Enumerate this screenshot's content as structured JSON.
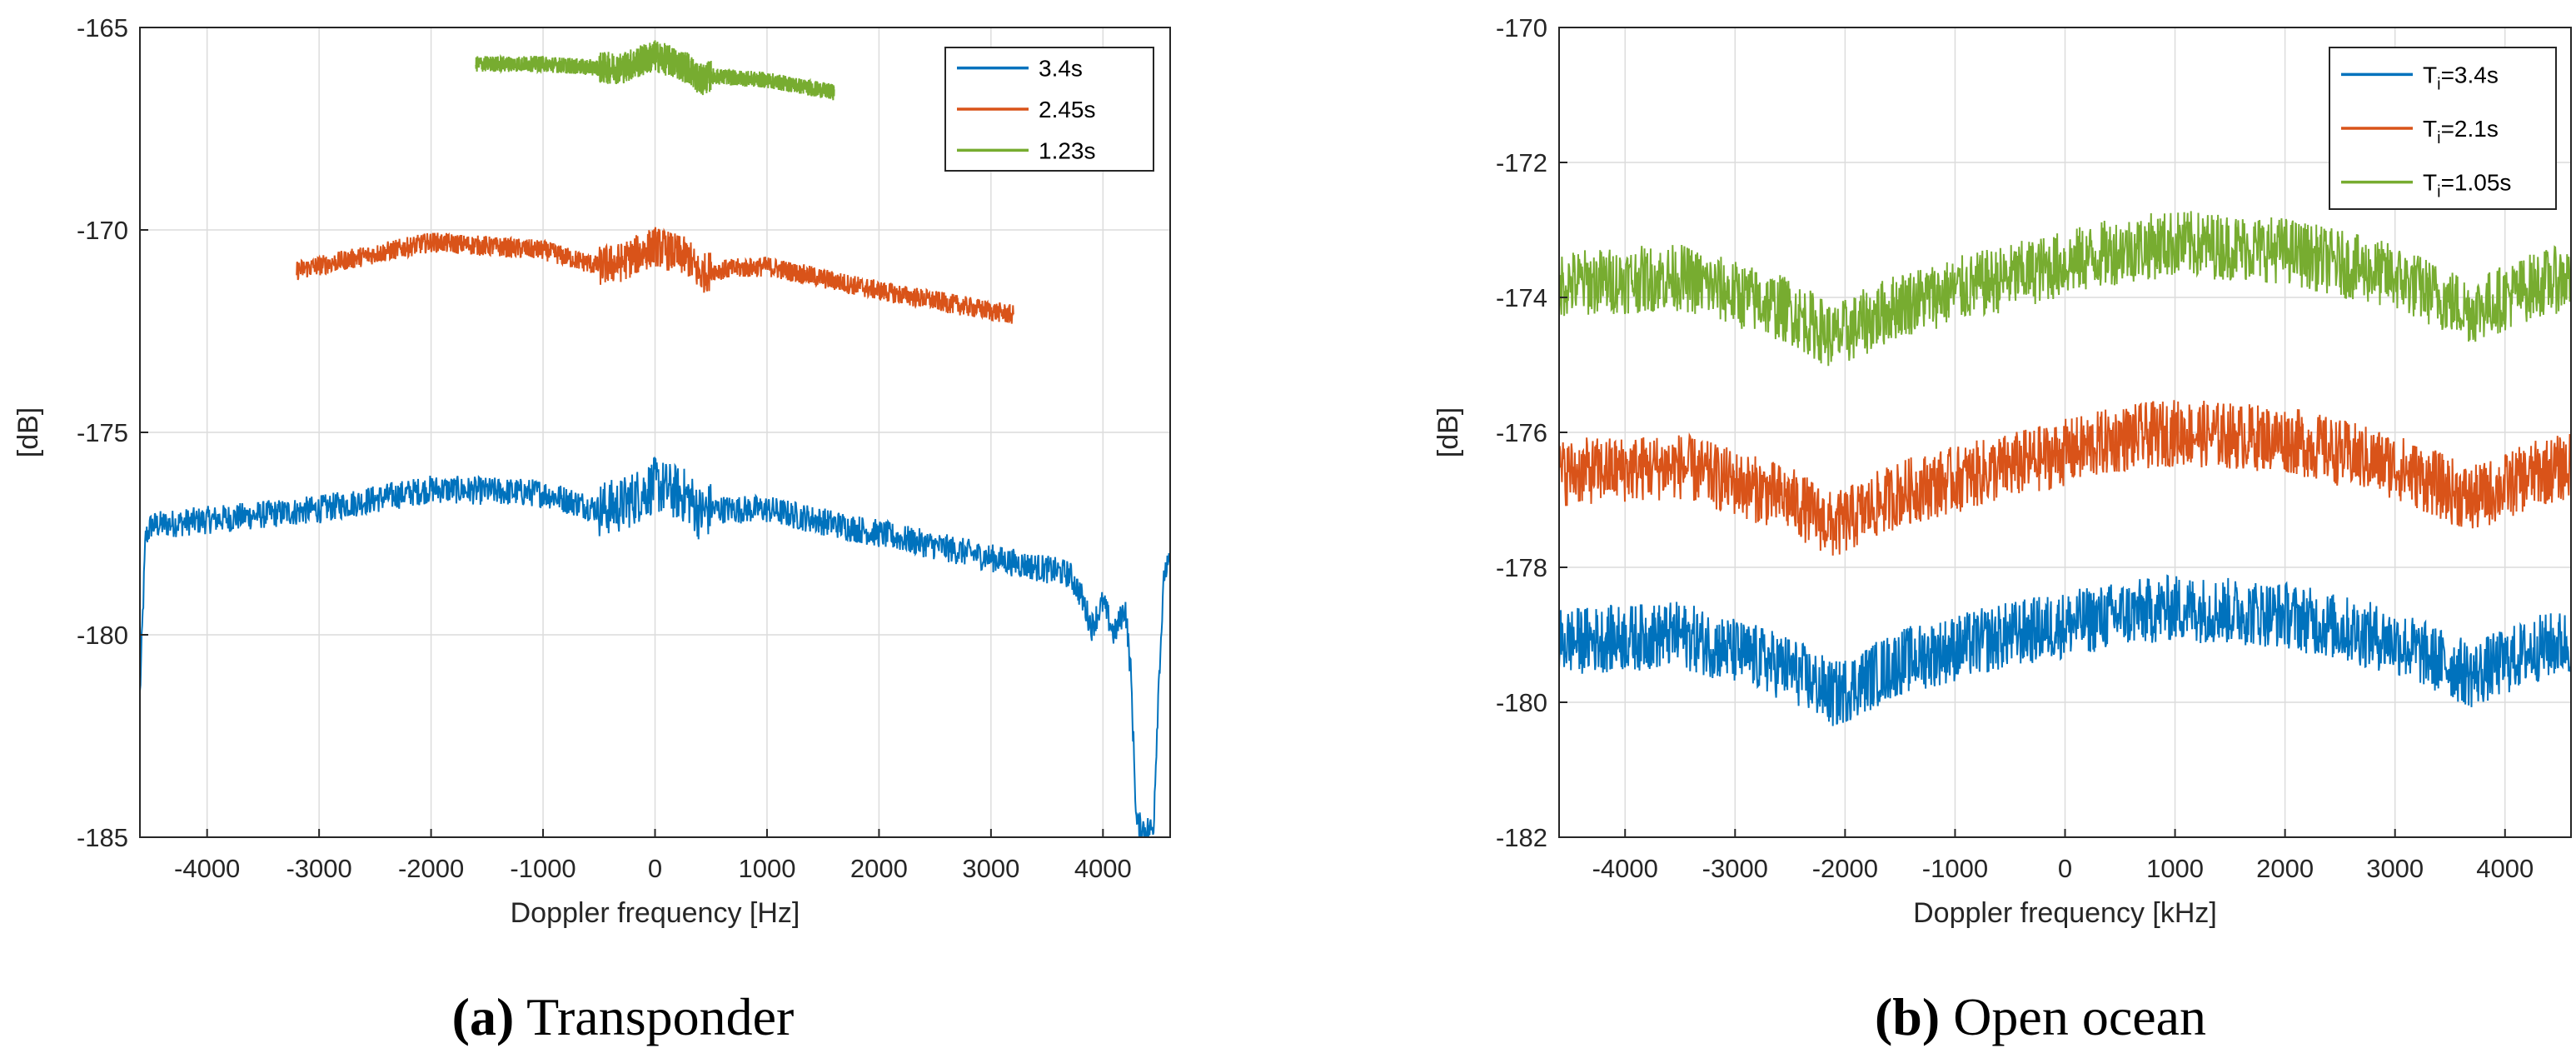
{
  "chart_data": [
    {
      "type": "line",
      "panel": "a",
      "caption_letter": "(a)",
      "caption_text": " Transponder",
      "xlabel": "Doppler frequency [Hz]",
      "ylabel": "[dB]",
      "xlim": [
        -4600,
        4600
      ],
      "ylim": [
        -185,
        -165
      ],
      "xticks": [
        -4000,
        -3000,
        -2000,
        -1000,
        0,
        1000,
        2000,
        3000,
        4000
      ],
      "yticks": [
        -185,
        -180,
        -175,
        -170,
        -165
      ],
      "grid": true,
      "legend_position": "top-right",
      "series": [
        {
          "name": "3.4s",
          "color": "#0072BD",
          "noise": 0.35,
          "x": [
            -4600,
            -4550,
            -4500,
            -3000,
            -2000,
            -1000,
            -500,
            -300,
            0,
            300,
            400,
            500,
            1000,
            2000,
            3000,
            3700,
            3800,
            3900,
            4000,
            4100,
            4200,
            4250,
            4300,
            4400,
            4450,
            4500,
            4550,
            4600
          ],
          "y": [
            -181.5,
            -177.6,
            -177.3,
            -176.9,
            -176.4,
            -176.5,
            -176.9,
            -176.8,
            -176.3,
            -176.6,
            -177.0,
            -176.9,
            -176.9,
            -177.5,
            -178.1,
            -178.5,
            -179.0,
            -179.8,
            -179.2,
            -180.0,
            -179.3,
            -181.0,
            -184.7,
            -184.8,
            -184.8,
            -181.0,
            -178.4,
            -178.3
          ]
        },
        {
          "name": "2.45s",
          "color": "#D95319",
          "noise": 0.25,
          "x": [
            -3200,
            -2000,
            -1000,
            -500,
            -300,
            0,
            300,
            400,
            500,
            1000,
            2000,
            3200
          ],
          "y": [
            -171.0,
            -170.3,
            -170.5,
            -170.9,
            -170.8,
            -170.4,
            -170.7,
            -171.1,
            -171.0,
            -170.9,
            -171.5,
            -172.1
          ],
          "band": [
            -500,
            500
          ]
        },
        {
          "name": "1.23s",
          "color": "#77AC30",
          "noise": 0.2,
          "x": [
            -1600,
            -1000,
            -500,
            -300,
            0,
            300,
            400,
            500,
            1000,
            1600
          ],
          "y": [
            -165.9,
            -165.9,
            -166.0,
            -166.0,
            -165.7,
            -166.0,
            -166.3,
            -166.2,
            -166.3,
            -166.6
          ],
          "band": [
            -500,
            500
          ]
        }
      ]
    },
    {
      "type": "line",
      "panel": "b",
      "caption_letter": "(b)",
      "caption_text": " Open ocean",
      "xlabel": "Doppler frequency [kHz]",
      "ylabel": "[dB]",
      "xlim": [
        -4600,
        4600
      ],
      "ylim": [
        -182,
        -170
      ],
      "xticks": [
        -4000,
        -3000,
        -2000,
        -1000,
        0,
        1000,
        2000,
        3000,
        4000
      ],
      "yticks": [
        -182,
        -180,
        -178,
        -176,
        -174,
        -172,
        -170
      ],
      "grid": true,
      "legend_position": "top-right",
      "series": [
        {
          "name": "Tᵢ=3.4s",
          "legend_main": "T",
          "legend_sub": "i",
          "legend_rest": "=3.4s",
          "color": "#0072BD",
          "noise": 0.5,
          "x": [
            -4600,
            -3500,
            -2500,
            -2100,
            -1500,
            -500,
            500,
            1000,
            2000,
            3000,
            3700,
            4300,
            4600
          ],
          "y": [
            -179.1,
            -179.0,
            -179.5,
            -179.9,
            -179.4,
            -179.0,
            -178.7,
            -178.6,
            -178.7,
            -179.1,
            -179.6,
            -179.2,
            -179.1
          ]
        },
        {
          "name": "Tᵢ=2.1s",
          "legend_main": "T",
          "legend_sub": "i",
          "legend_rest": "=2.1s",
          "color": "#D95319",
          "noise": 0.5,
          "x": [
            -4600,
            -3500,
            -2500,
            -2100,
            -1500,
            -500,
            500,
            1000,
            2000,
            3000,
            3700,
            4300,
            4600
          ],
          "y": [
            -176.6,
            -176.5,
            -177.0,
            -177.4,
            -176.9,
            -176.5,
            -176.1,
            -176.0,
            -176.1,
            -176.5,
            -177.0,
            -176.6,
            -176.5
          ]
        },
        {
          "name": "Tᵢ=1.05s",
          "legend_main": "T",
          "legend_sub": "i",
          "legend_rest": "=1.05s",
          "color": "#77AC30",
          "noise": 0.5,
          "x": [
            -4600,
            -3500,
            -2500,
            -2100,
            -1500,
            -500,
            500,
            1000,
            2000,
            3000,
            3700,
            4300,
            4600
          ],
          "y": [
            -173.8,
            -173.7,
            -174.2,
            -174.6,
            -174.1,
            -173.7,
            -173.3,
            -173.2,
            -173.3,
            -173.7,
            -174.2,
            -173.8,
            -173.7
          ]
        }
      ]
    }
  ]
}
